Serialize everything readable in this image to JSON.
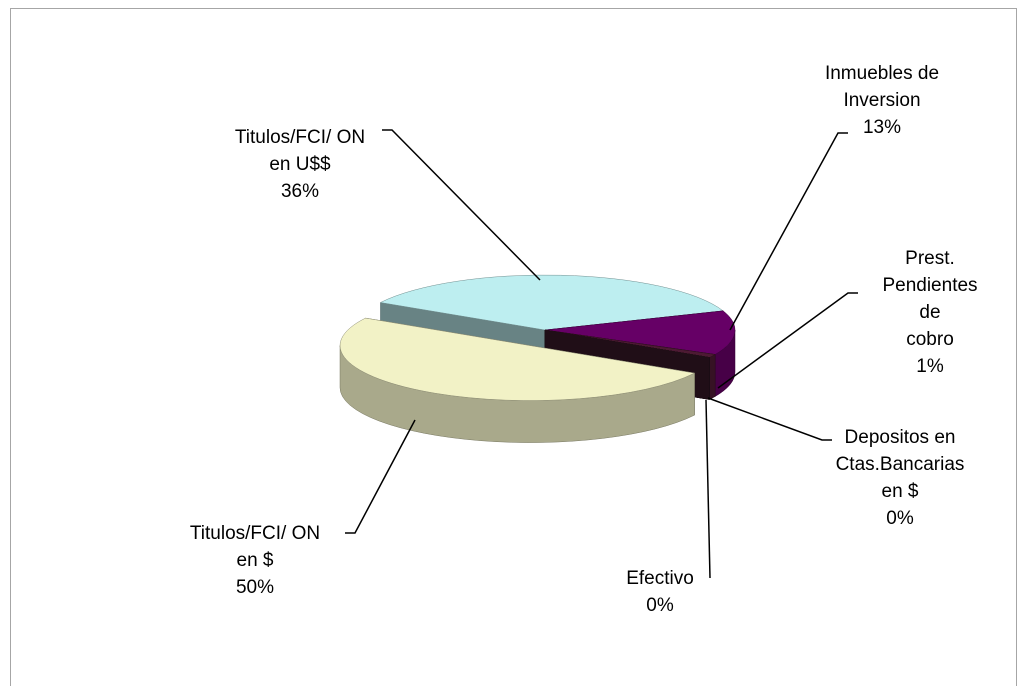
{
  "chart_data": {
    "type": "pie",
    "categories": [
      "Titulos/FCI/ ON\nen U$$",
      "Inmuebles de\nInversion",
      "Prest.\nPendientes de\ncobro",
      "Depositos en\nCtas.Bancarias\nen $",
      "Efectivo",
      "Titulos/FCI/ ON\nen $"
    ],
    "values": [
      36,
      13,
      1,
      0,
      0,
      50
    ],
    "value_labels": [
      "36%",
      "13%",
      "1%",
      "0%",
      "0%",
      "50%"
    ],
    "colors": [
      "#bdeef0",
      "#660066",
      "#4d1a33",
      "#3a1a2a",
      "#3a1a2a",
      "#f2f2c6"
    ]
  }
}
